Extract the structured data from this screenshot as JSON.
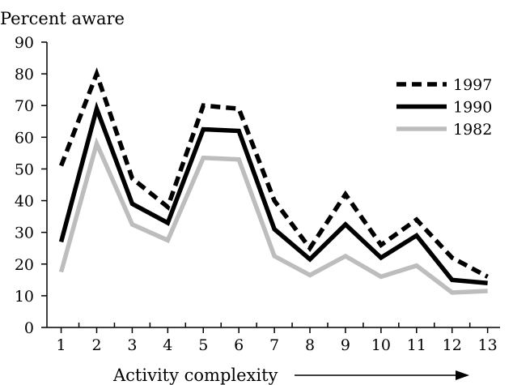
{
  "chart_data": {
    "type": "line",
    "ylabel": "Percent aware",
    "xlabel": "Activity complexity",
    "x": [
      1,
      2,
      3,
      4,
      5,
      6,
      7,
      8,
      9,
      10,
      11,
      12,
      13
    ],
    "ylim": [
      0,
      90
    ],
    "yticks": [
      0,
      10,
      20,
      30,
      40,
      50,
      60,
      70,
      80,
      90
    ],
    "grid": false,
    "legend_position": "top-right",
    "series": [
      {
        "name": "1997",
        "style": "dashed",
        "color": "#000000",
        "values": [
          51,
          80,
          47,
          38,
          70,
          69,
          40,
          25,
          42,
          26,
          34,
          22,
          16
        ]
      },
      {
        "name": "1990",
        "style": "solid",
        "color": "#000000",
        "values": [
          27,
          69,
          39,
          33,
          62.5,
          62,
          31,
          21.5,
          32.5,
          22,
          29,
          15,
          14
        ]
      },
      {
        "name": "1982",
        "style": "solid",
        "color": "#bdbdbd",
        "values": [
          17.5,
          58,
          32.5,
          27.5,
          53.5,
          53,
          22.5,
          16.5,
          22.5,
          16,
          19.5,
          11,
          11.5
        ]
      }
    ]
  }
}
